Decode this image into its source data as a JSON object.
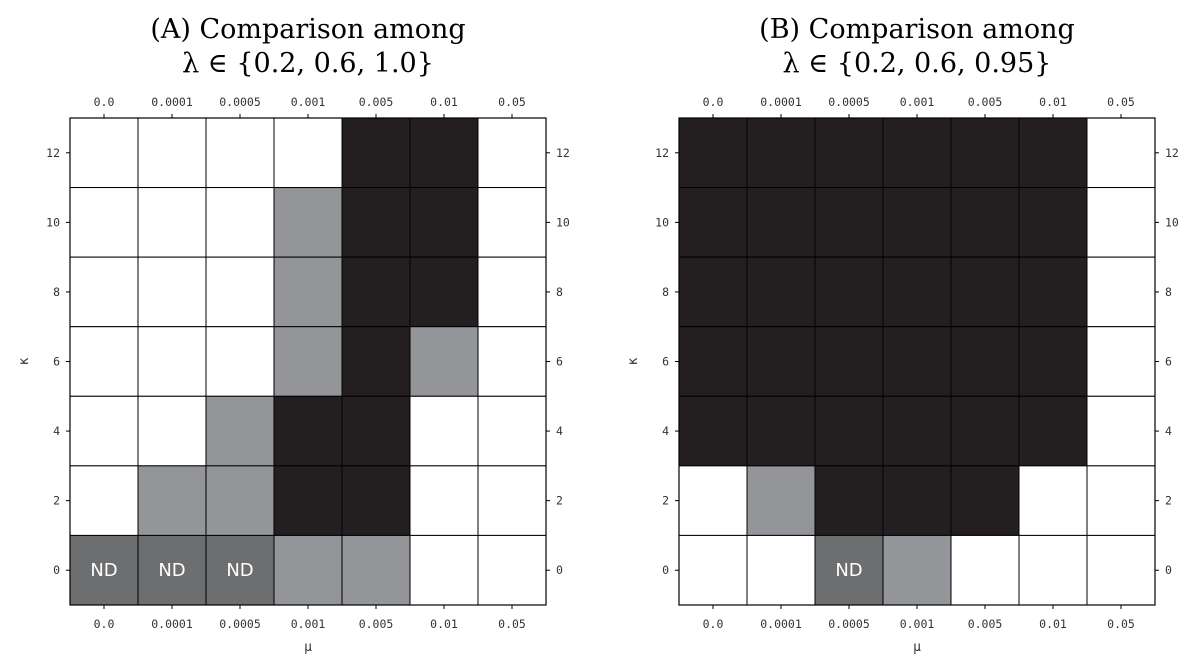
{
  "colors": {
    "empty": "#ffffff",
    "gray": "#939598",
    "black": "#231f20",
    "nd": "#6d6e70",
    "grid": "#000000"
  },
  "chart_data": [
    {
      "type": "heatmap",
      "title_line1": "(A) Comparison among",
      "title_line2": "λ ∈ {0.2, 0.6, 1.0}",
      "xlabel": "μ",
      "ylabel": "κ",
      "x_categories": [
        "0.0",
        "0.0001",
        "0.0005",
        "0.001",
        "0.005",
        "0.01",
        "0.05"
      ],
      "y_ticks": [
        "0",
        "2",
        "4",
        "6",
        "8",
        "10",
        "12"
      ],
      "ylim": [
        -1,
        13
      ],
      "rows": [
        {
          "y_range": [
            11,
            13
          ],
          "cells": [
            "empty",
            "empty",
            "empty",
            "empty",
            "black",
            "black",
            "empty"
          ]
        },
        {
          "y_range": [
            9,
            11
          ],
          "cells": [
            "empty",
            "empty",
            "empty",
            "gray",
            "black",
            "black",
            "empty"
          ]
        },
        {
          "y_range": [
            7,
            9
          ],
          "cells": [
            "empty",
            "empty",
            "empty",
            "gray",
            "black",
            "black",
            "empty"
          ]
        },
        {
          "y_range": [
            5,
            7
          ],
          "cells": [
            "empty",
            "empty",
            "empty",
            "gray",
            "black",
            "gray",
            "empty"
          ]
        },
        {
          "y_range": [
            3,
            5
          ],
          "cells": [
            "empty",
            "empty",
            "gray",
            "black",
            "black",
            "empty",
            "empty"
          ]
        },
        {
          "y_range": [
            1,
            3
          ],
          "cells": [
            "empty",
            "gray",
            "gray",
            "black",
            "black",
            "empty",
            "empty"
          ]
        },
        {
          "y_range": [
            -1,
            1
          ],
          "cells": [
            "nd",
            "nd",
            "nd",
            "gray",
            "gray",
            "empty",
            "empty"
          ]
        }
      ],
      "cell_labels": {
        "nd": "ND"
      }
    },
    {
      "type": "heatmap",
      "title_line1": "(B) Comparison among",
      "title_line2": "λ ∈ {0.2, 0.6, 0.95}",
      "xlabel": "μ",
      "ylabel": "κ",
      "x_categories": [
        "0.0",
        "0.0001",
        "0.0005",
        "0.001",
        "0.005",
        "0.01",
        "0.05"
      ],
      "y_ticks": [
        "0",
        "2",
        "4",
        "6",
        "8",
        "10",
        "12"
      ],
      "ylim": [
        -1,
        13
      ],
      "rows": [
        {
          "y_range": [
            11,
            13
          ],
          "cells": [
            "black",
            "black",
            "black",
            "black",
            "black",
            "black",
            "empty"
          ]
        },
        {
          "y_range": [
            9,
            11
          ],
          "cells": [
            "black",
            "black",
            "black",
            "black",
            "black",
            "black",
            "empty"
          ]
        },
        {
          "y_range": [
            7,
            9
          ],
          "cells": [
            "black",
            "black",
            "black",
            "black",
            "black",
            "black",
            "empty"
          ]
        },
        {
          "y_range": [
            5,
            7
          ],
          "cells": [
            "black",
            "black",
            "black",
            "black",
            "black",
            "black",
            "empty"
          ]
        },
        {
          "y_range": [
            3,
            5
          ],
          "cells": [
            "black",
            "black",
            "black",
            "black",
            "black",
            "black",
            "empty"
          ]
        },
        {
          "y_range": [
            1,
            3
          ],
          "cells": [
            "empty",
            "gray",
            "black",
            "black",
            "black",
            "empty",
            "empty"
          ]
        },
        {
          "y_range": [
            -1,
            1
          ],
          "cells": [
            "empty",
            "empty",
            "nd",
            "gray",
            "empty",
            "empty",
            "empty"
          ]
        }
      ],
      "cell_labels": {
        "nd": "ND"
      }
    }
  ]
}
